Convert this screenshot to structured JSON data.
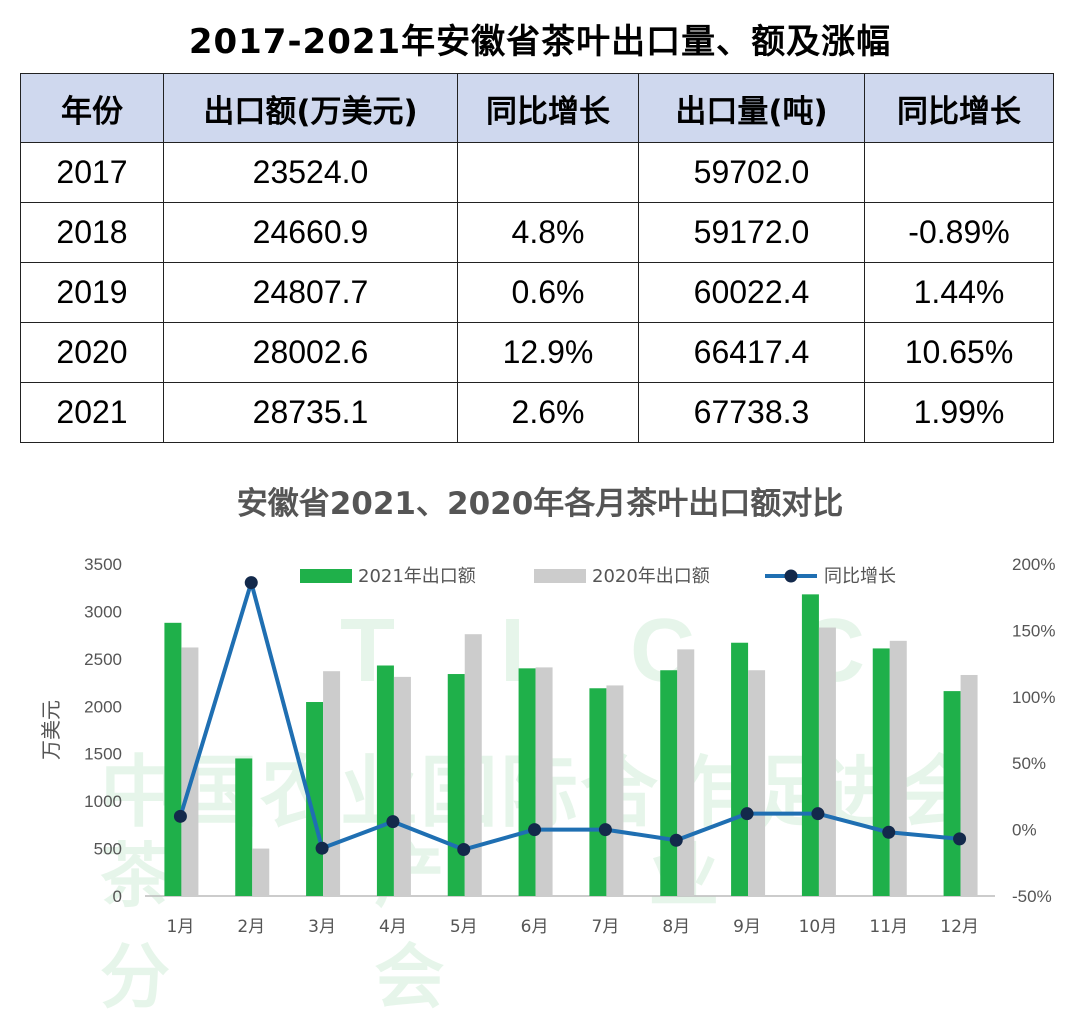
{
  "title": "2017-2021年安徽省茶叶出口量、额及涨幅",
  "table": {
    "headers": [
      "年份",
      "出口额(万美元)",
      "同比增长",
      "出口量(吨)",
      "同比增长"
    ],
    "rows": [
      [
        "2017",
        "23524.0",
        "",
        "59702.0",
        ""
      ],
      [
        "2018",
        "24660.9",
        "4.8%",
        "59172.0",
        "-0.89%"
      ],
      [
        "2019",
        "24807.7",
        "0.6%",
        "60022.4",
        "1.44%"
      ],
      [
        "2020",
        "28002.6",
        "12.9%",
        "66417.4",
        "10.65%"
      ],
      [
        "2021",
        "28735.1",
        "2.6%",
        "67738.3",
        "1.99%"
      ]
    ]
  },
  "chart_data": {
    "type": "bar",
    "title": "安徽省2021、2020年各月茶叶出口额对比",
    "ylabel": "万美元",
    "categories": [
      "1月",
      "2月",
      "3月",
      "4月",
      "5月",
      "6月",
      "7月",
      "8月",
      "9月",
      "10月",
      "11月",
      "12月"
    ],
    "ylim": [
      0,
      3500
    ],
    "yticks": [
      0,
      500,
      1000,
      1500,
      2000,
      2500,
      3000,
      3500
    ],
    "y2lim": [
      -50,
      200
    ],
    "y2ticks": [
      "-50%",
      "0%",
      "50%",
      "100%",
      "150%",
      "200%"
    ],
    "y2tick_values": [
      -50,
      0,
      50,
      100,
      150,
      200
    ],
    "series": [
      {
        "name": "2021年出口额",
        "type": "bar",
        "color": "#1fb04a",
        "values": [
          2880,
          1450,
          2045,
          2430,
          2340,
          2400,
          2190,
          2380,
          2670,
          3180,
          2610,
          2160
        ]
      },
      {
        "name": "2020年出口额",
        "type": "bar",
        "color": "#cccccc",
        "values": [
          2620,
          500,
          2370,
          2310,
          2760,
          2410,
          2220,
          2600,
          2380,
          2830,
          2690,
          2330
        ]
      },
      {
        "name": "同比增长",
        "type": "line",
        "axis": "right",
        "color": "#1f6fb2",
        "values": [
          10,
          186,
          -14,
          6,
          -15,
          0,
          0,
          -8,
          12,
          12,
          -2,
          -7
        ]
      }
    ],
    "legend": "top",
    "grid": false
  },
  "watermark": {
    "line1": "T I C C",
    "line2": "中国农业国际合作促进会",
    "line3": "茶 产 业 分 会"
  }
}
